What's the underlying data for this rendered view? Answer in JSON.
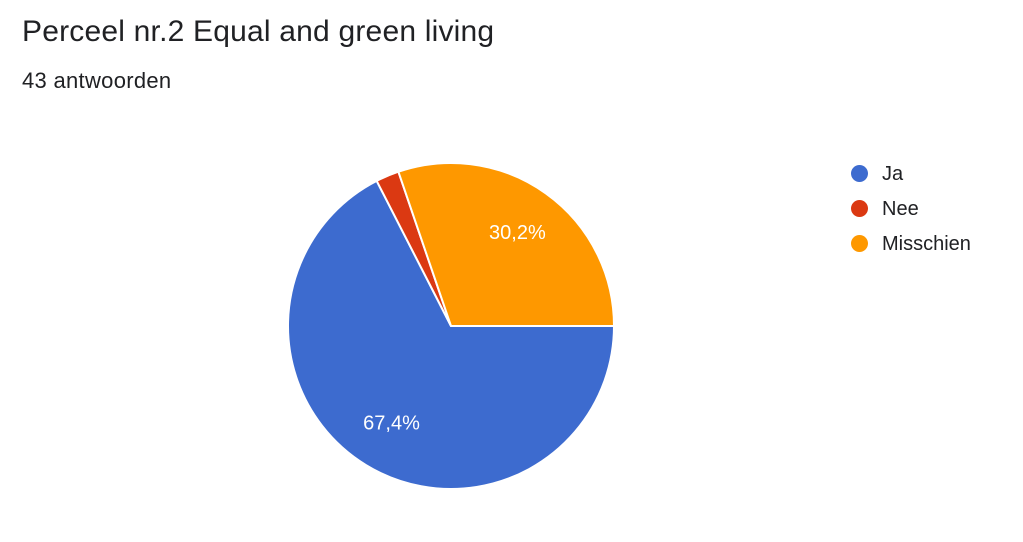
{
  "header": {
    "title": "Perceel nr.2 Equal and green living",
    "subtitle": "43 antwoorden"
  },
  "chart_data": {
    "type": "pie",
    "title": "Perceel nr.2 Equal and green living",
    "subtitle": "43 antwoorden",
    "total_responses": 43,
    "categories": [
      "Ja",
      "Nee",
      "Misschien"
    ],
    "values": [
      67.4,
      2.3,
      30.2
    ],
    "slice_labels": [
      "67,4%",
      "",
      "30,2%"
    ],
    "colors": [
      "#3d6bcf",
      "#db3912",
      "#fe9800"
    ],
    "slice_border_color": "#ffffff",
    "label_color": "#ffffff",
    "start_angle_deg": 0,
    "direction": "clockwise",
    "label_radius_frac": 0.7,
    "legend_position": "right",
    "background": "#ffffff",
    "text_color": "#202124"
  }
}
